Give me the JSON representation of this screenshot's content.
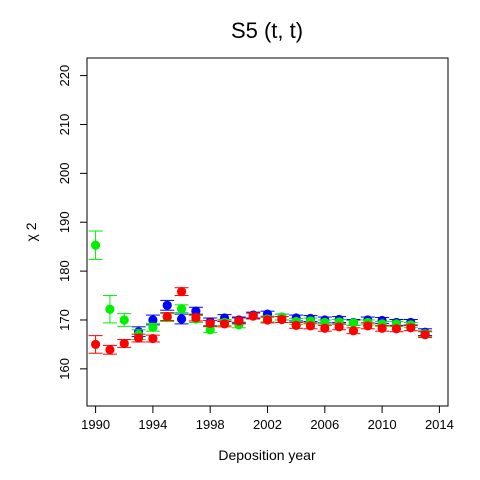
{
  "chart_data": {
    "type": "scatter",
    "title": "S5  (t, t)",
    "xlabel": "Deposition year",
    "ylabel": "χ 2",
    "xlim": [
      1989.4,
      2014.6
    ],
    "ylim": [
      152.4,
      223.6
    ],
    "x_ticks": [
      1990,
      1994,
      1998,
      2002,
      2006,
      2010,
      2014
    ],
    "y_ticks": [
      160,
      170,
      180,
      190,
      200,
      210,
      220
    ],
    "grid": false,
    "legend": "none",
    "series": [
      {
        "color": "#0000ff",
        "x": [
          1993,
          1994,
          1995,
          1996,
          1997,
          1998,
          1999,
          2000,
          2001,
          2002,
          2003,
          2004,
          2005,
          2006,
          2007,
          2008,
          2009,
          2010,
          2011,
          2012,
          2013
        ],
        "y": [
          167.6,
          170.0,
          173.0,
          170.2,
          171.8,
          169.6,
          170.4,
          170.0,
          171.0,
          171.2,
          170.6,
          170.4,
          170.3,
          170.0,
          170.1,
          169.5,
          170.0,
          169.9,
          169.5,
          169.5,
          167.5
        ],
        "err": [
          1.0,
          1.0,
          1.0,
          1.0,
          0.8,
          0.8,
          0.7,
          0.6,
          0.6,
          0.6,
          0.6,
          0.6,
          0.6,
          0.6,
          0.6,
          0.6,
          0.6,
          0.6,
          0.6,
          0.6,
          0.7
        ]
      },
      {
        "color": "#00ee00",
        "x": [
          1990,
          1991,
          1992,
          1993,
          1994,
          1995,
          1996,
          1997,
          1998,
          1999,
          2000,
          2001,
          2002,
          2003,
          2004,
          2005,
          2006,
          2007,
          2008,
          2009,
          2010,
          2011,
          2012,
          2013
        ],
        "y": [
          185.3,
          172.2,
          170.0,
          167.0,
          168.5,
          170.5,
          172.3,
          170.2,
          168.0,
          169.5,
          169.0,
          170.8,
          170.2,
          170.6,
          169.7,
          169.8,
          169.5,
          169.6,
          169.4,
          169.5,
          169.2,
          169.2,
          169.0,
          167.2
        ],
        "err": [
          2.9,
          2.8,
          1.3,
          1.0,
          0.8,
          0.8,
          0.8,
          0.7,
          0.6,
          0.6,
          0.6,
          0.6,
          0.6,
          0.6,
          0.6,
          0.6,
          0.5,
          0.5,
          0.5,
          0.5,
          0.5,
          0.5,
          0.5,
          0.6
        ]
      },
      {
        "color": "#ff0000",
        "x": [
          1990,
          1991,
          1992,
          1993,
          1994,
          1995,
          1996,
          1997,
          1998,
          1999,
          2000,
          2001,
          2002,
          2003,
          2004,
          2005,
          2006,
          2007,
          2008,
          2009,
          2010,
          2011,
          2012,
          2013
        ],
        "y": [
          165.0,
          163.9,
          165.2,
          166.3,
          166.2,
          170.7,
          175.8,
          170.5,
          169.3,
          169.2,
          169.8,
          170.8,
          170.0,
          170.1,
          168.9,
          168.8,
          168.3,
          168.6,
          167.8,
          168.8,
          168.3,
          168.2,
          168.4,
          167.0
        ],
        "err": [
          1.8,
          0.9,
          0.8,
          0.8,
          0.7,
          0.8,
          0.8,
          0.7,
          0.6,
          0.6,
          0.6,
          0.6,
          0.6,
          0.6,
          0.6,
          0.6,
          0.6,
          0.6,
          0.6,
          0.6,
          0.6,
          0.6,
          0.6,
          0.6
        ]
      }
    ]
  }
}
